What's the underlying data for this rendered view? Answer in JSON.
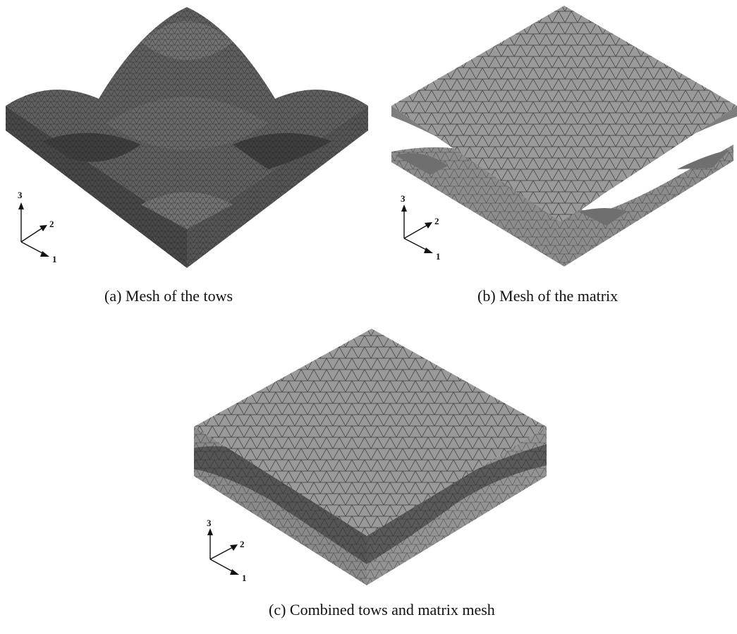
{
  "figure": {
    "panels": [
      {
        "id": "a",
        "caption": "(a) Mesh of the tows",
        "axes": {
          "z": "3",
          "y": "2",
          "x": "1"
        }
      },
      {
        "id": "b",
        "caption": "(b) Mesh of the matrix",
        "axes": {
          "z": "3",
          "y": "2",
          "x": "1"
        }
      },
      {
        "id": "c",
        "caption": "(c) Combined tows and matrix mesh",
        "axes": {
          "z": "3",
          "y": "2",
          "x": "1"
        }
      }
    ]
  },
  "colors": {
    "tow_top": "#5e5e5e",
    "tow_side": "#4a4a4a",
    "matrix_top": "#9a9a9a",
    "matrix_side": "#7e7e7e",
    "mesh_line": "#1a1a1a"
  }
}
